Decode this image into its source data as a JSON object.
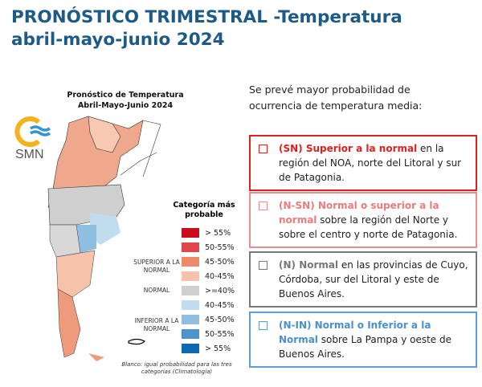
{
  "title": {
    "line1": "PRONÓSTICO TRIMESTRAL -Temperatura",
    "line2": "abril-mayo-junio 2024"
  },
  "map": {
    "title1": "Pronóstico de Temperatura",
    "title2": "Abril-Mayo-Junio 2024",
    "logo_text": "SMN",
    "legend_title": "Categoría más probable",
    "groups": {
      "superior": "SUPERIOR A LA NORMAL",
      "normal": "NORMAL",
      "inferior": "INFERIOR A LA NORMAL"
    },
    "legend": [
      {
        "label": "> 55%",
        "color": "#cc0a1e"
      },
      {
        "label": "50-55%",
        "color": "#e0474a"
      },
      {
        "label": "45-50%",
        "color": "#ee8a6a"
      },
      {
        "label": "40-45%",
        "color": "#f6c3aa"
      },
      {
        "label": ">=40%",
        "color": "#cfcfcf"
      },
      {
        "label": "40-45%",
        "color": "#c2dcef"
      },
      {
        "label": "45-50%",
        "color": "#8fbfe0"
      },
      {
        "label": "50-55%",
        "color": "#4e94cc"
      },
      {
        "label": "> 55%",
        "color": "#0d68b0"
      }
    ],
    "note": "Blanco: igual probabilidad para las tres categorías (Climatología)"
  },
  "intro": "Se prevé mayor probabilidad de ocurrencia de temperatura media:",
  "boxes": [
    {
      "bold": "(SN) Superior a la normal",
      "text": " en la región del NOA, norte del Litoral y sur de Patagonia.",
      "color": "#e0201e"
    },
    {
      "bold": "(N-SN) Normal o superior a la normal",
      "text": " sobre la región del Norte y sobre el centro y norte de Patagonia.",
      "color": "#ee8c8c"
    },
    {
      "bold": "(N) Normal",
      "text": "  en las provincias de Cuyo, Córdoba, sur del Litoral y este de Buenos Aires.",
      "color": "#777777"
    },
    {
      "bold": "(N-IN) Normal o Inferior a la Normal",
      "text": " sobre La Pampa y oeste de Buenos Aires.",
      "color": "#5b9fd6"
    }
  ]
}
